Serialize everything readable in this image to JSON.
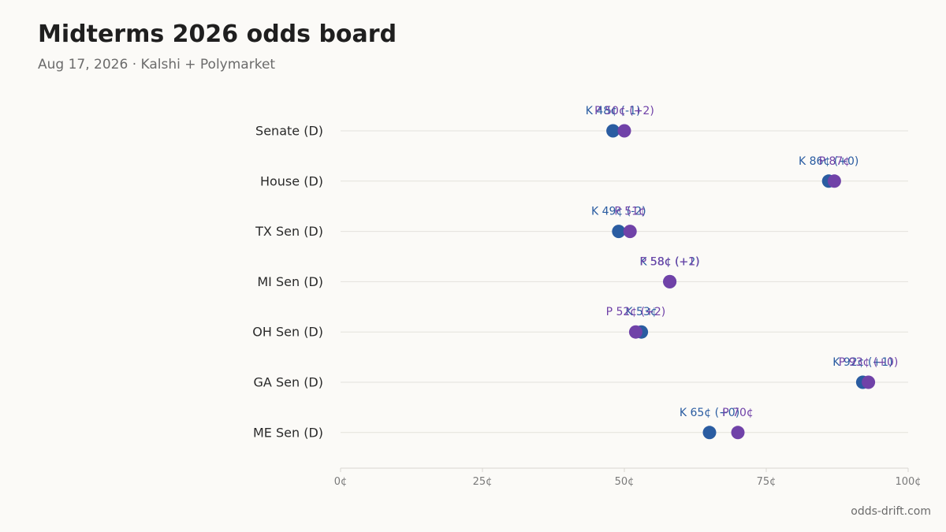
{
  "header": {
    "title": "Midterms 2026 odds board",
    "subtitle": "Aug 17, 2026 · Kalshi + Polymarket"
  },
  "footer": {
    "source": "odds-drift.com"
  },
  "colors": {
    "background": "#fbfaf7",
    "kalshi": "#2a5ca1",
    "polymarket": "#7042a8",
    "gridline": "#e3e1dc",
    "axis": "#d8d6d1"
  },
  "chart_data": {
    "type": "scatter",
    "title": "Midterms 2026 odds board",
    "subtitle": "Aug 17, 2026 · Kalshi + Polymarket",
    "xlabel": "",
    "ylabel": "",
    "xlim": [
      0,
      100
    ],
    "x_ticks": [
      "0¢",
      "25¢",
      "50¢",
      "75¢",
      "100¢"
    ],
    "x_tick_values": [
      0,
      25,
      50,
      75,
      100
    ],
    "grid": true,
    "categories": [
      "Senate (D)",
      "House (D)",
      "TX Sen (D)",
      "MI Sen (D)",
      "OH Sen (D)",
      "GA Sen (D)",
      "ME Sen (D)"
    ],
    "series": [
      {
        "key": "kalshi",
        "values": [
          48,
          86,
          49,
          58,
          53,
          92,
          65
        ],
        "labels": [
          "K 48¢ (-1)",
          "K 86¢ (+0)",
          "K 49¢ (-2)",
          "K 58¢ (+2)",
          "K 53¢",
          "K 92¢ (+1)",
          "K 65¢ (+0)"
        ]
      },
      {
        "key": "polymarket",
        "values": [
          50,
          87,
          51,
          58,
          52,
          93,
          70
        ],
        "labels": [
          "P 50¢ (+2)",
          "P 87¢",
          "P 51¢",
          "P 58¢ (+1)",
          "P 52¢ (+2)",
          "P 93¢ (+0)",
          "P 70¢"
        ]
      }
    ]
  }
}
